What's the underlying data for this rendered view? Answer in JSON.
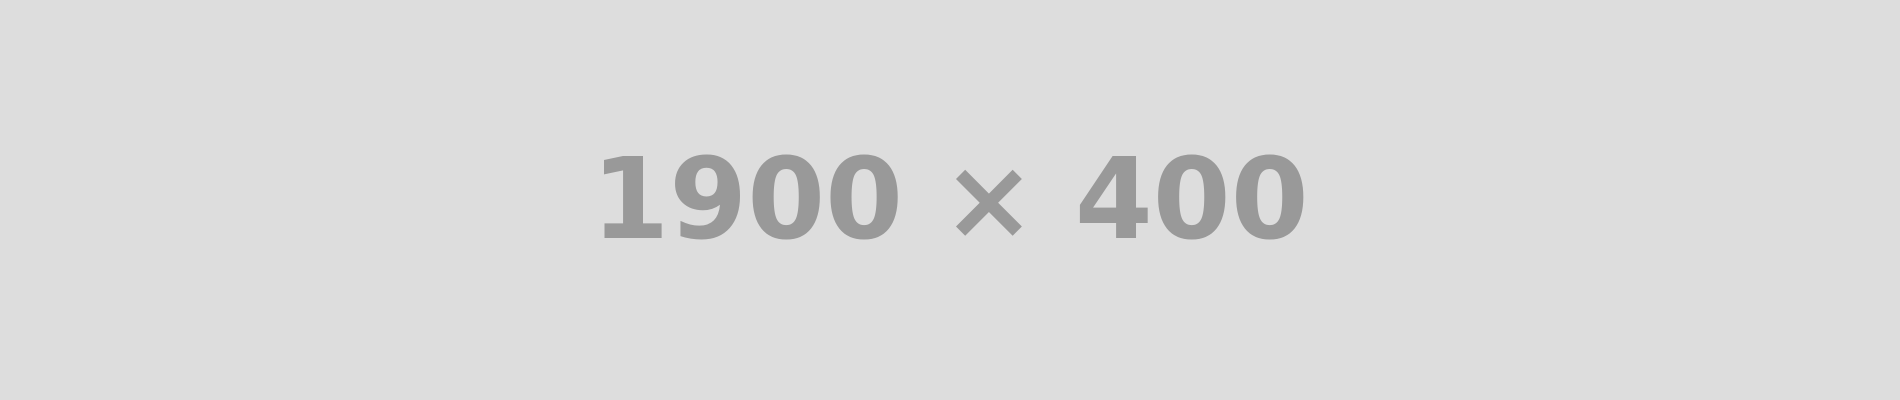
{
  "placeholder": {
    "text": "1900 × 400",
    "background_color": "#dddddd",
    "text_color": "#999999"
  }
}
